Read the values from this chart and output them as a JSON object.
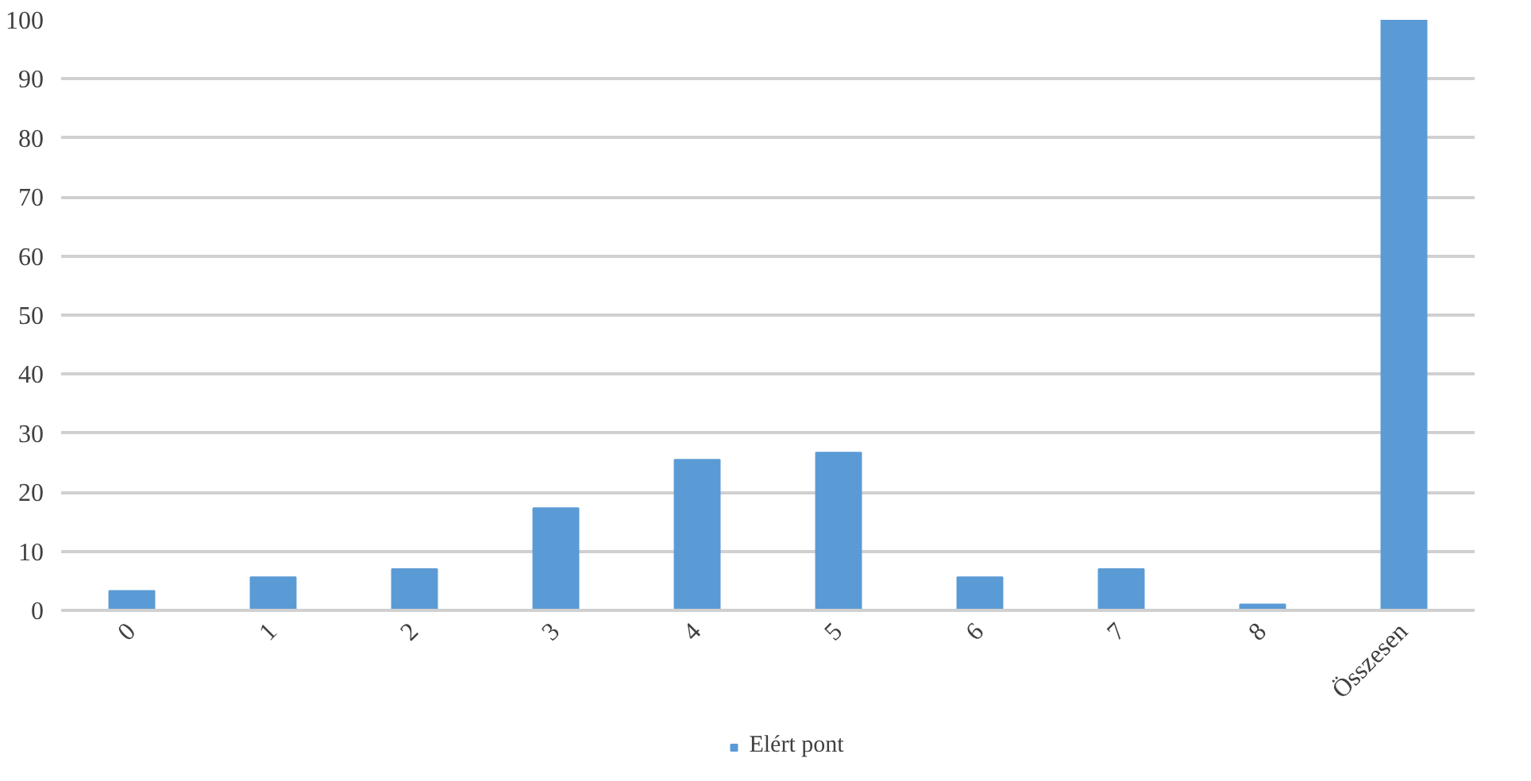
{
  "chart_data": {
    "type": "bar",
    "categories": [
      "0",
      "1",
      "2",
      "3",
      "4",
      "5",
      "6",
      "7",
      "8",
      "Összesen"
    ],
    "series": [
      {
        "name": "Elért pont",
        "color": "#5b9bd5",
        "values": [
          3.3,
          5.6,
          7.0,
          17.3,
          25.5,
          26.7,
          5.6,
          7.0,
          1.0,
          100
        ]
      }
    ],
    "ylim": [
      0,
      100
    ],
    "yticks": [
      0,
      10,
      20,
      30,
      40,
      50,
      60,
      70,
      80,
      90,
      100
    ],
    "grid": "y",
    "legend": "bottom"
  }
}
